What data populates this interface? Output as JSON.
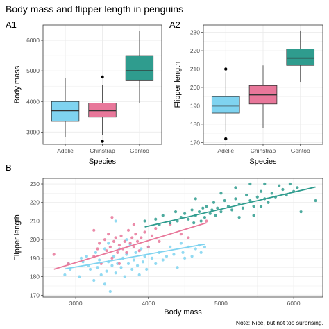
{
  "figure": {
    "title": "Body mass and flipper length in penguins",
    "caption": "Note: Nice, but not too surprising."
  },
  "colors": {
    "Adelie": "#7fd3f0",
    "Chinstrap": "#e8779a",
    "Gentoo": "#2f9c8e",
    "grid": "#ebebeb",
    "panel_border": "#333333"
  },
  "chart_data": [
    {
      "type": "box",
      "tag": "A1",
      "xlabel": "Species",
      "ylabel": "Body mass",
      "categories": [
        "Adelie",
        "Chinstrap",
        "Gentoo"
      ],
      "ylim": [
        2600,
        6500
      ],
      "yticks": [
        3000,
        4000,
        5000,
        6000
      ],
      "boxes": [
        {
          "name": "Adelie",
          "min": 2850,
          "q1": 3350,
          "median": 3700,
          "q3": 4000,
          "max": 4775,
          "outliers": []
        },
        {
          "name": "Chinstrap",
          "min": 2900,
          "q1": 3490,
          "median": 3700,
          "q3": 3950,
          "max": 4550,
          "outliers": [
            2700,
            4800
          ]
        },
        {
          "name": "Gentoo",
          "min": 3950,
          "q1": 4700,
          "median": 5000,
          "q3": 5500,
          "max": 6300,
          "outliers": []
        }
      ]
    },
    {
      "type": "box",
      "tag": "A2",
      "xlabel": "Species",
      "ylabel": "Flipper length",
      "categories": [
        "Adelie",
        "Chinstrap",
        "Gentoo"
      ],
      "ylim": [
        169,
        234
      ],
      "yticks": [
        170,
        180,
        190,
        200,
        210,
        220,
        230
      ],
      "boxes": [
        {
          "name": "Adelie",
          "min": 176,
          "q1": 186,
          "median": 190,
          "q3": 195,
          "max": 208,
          "outliers": [
            172,
            210
          ]
        },
        {
          "name": "Chinstrap",
          "min": 178,
          "q1": 191,
          "median": 196,
          "q3": 201,
          "max": 212,
          "outliers": []
        },
        {
          "name": "Gentoo",
          "min": 203,
          "q1": 212,
          "median": 216,
          "q3": 221,
          "max": 231,
          "outliers": []
        }
      ]
    },
    {
      "type": "scatter",
      "tag": "B",
      "xlabel": "Body mass",
      "ylabel": "Flipper length",
      "xlim": [
        2550,
        6400
      ],
      "ylim": [
        169,
        233
      ],
      "xticks": [
        3000,
        4000,
        5000,
        6000
      ],
      "yticks": [
        170,
        180,
        190,
        200,
        210,
        220,
        230
      ],
      "series": [
        {
          "name": "Adelie",
          "fit": [
            [
              2850,
              184.2
            ],
            [
              4775,
              197.5
            ]
          ],
          "points": [
            [
              2850,
              181
            ],
            [
              2900,
              187
            ],
            [
              2925,
              184
            ],
            [
              3050,
              180
            ],
            [
              3075,
              190
            ],
            [
              3100,
              188
            ],
            [
              3150,
              191
            ],
            [
              3175,
              186
            ],
            [
              3200,
              184
            ],
            [
              3250,
              178
            ],
            [
              3275,
              193
            ],
            [
              3300,
              185
            ],
            [
              3325,
              189
            ],
            [
              3350,
              181
            ],
            [
              3400,
              195
            ],
            [
              3425,
              183
            ],
            [
              3450,
              188
            ],
            [
              3475,
              172
            ],
            [
              3500,
              186
            ],
            [
              3525,
              191
            ],
            [
              3550,
              182
            ],
            [
              3575,
              187
            ],
            [
              3600,
              195
            ],
            [
              3625,
              185
            ],
            [
              3650,
              190
            ],
            [
              3675,
              180
            ],
            [
              3700,
              192
            ],
            [
              3725,
              187
            ],
            [
              3750,
              197
            ],
            [
              3775,
              184
            ],
            [
              3800,
              189
            ],
            [
              3825,
              193
            ],
            [
              3850,
              186
            ],
            [
              3875,
              181
            ],
            [
              3900,
              195
            ],
            [
              3925,
              188
            ],
            [
              3950,
              191
            ],
            [
              3975,
              184
            ],
            [
              4000,
              196
            ],
            [
              4050,
              190
            ],
            [
              4100,
              187
            ],
            [
              4150,
              193
            ],
            [
              4200,
              189
            ],
            [
              4250,
              191
            ],
            [
              4300,
              196
            ],
            [
              4350,
              192
            ],
            [
              4400,
              185
            ],
            [
              4450,
              198
            ],
            [
              4475,
              193
            ],
            [
              4500,
              190
            ],
            [
              4550,
              196
            ],
            [
              4600,
              191
            ],
            [
              4650,
              195
            ],
            [
              4700,
              197
            ],
            [
              4725,
              193
            ],
            [
              4775,
              196
            ],
            [
              3400,
              176
            ],
            [
              3550,
              210
            ],
            [
              3700,
              200
            ],
            [
              3450,
              198
            ]
          ]
        },
        {
          "name": "Chinstrap",
          "fit": [
            [
              2700,
              184.0
            ],
            [
              4800,
              209.0
            ]
          ],
          "points": [
            [
              2700,
              192
            ],
            [
              2900,
              187
            ],
            [
              3250,
              191
            ],
            [
              3300,
              195
            ],
            [
              3325,
              198
            ],
            [
              3350,
              187
            ],
            [
              3400,
              200
            ],
            [
              3425,
              194
            ],
            [
              3450,
              203
            ],
            [
              3475,
              196
            ],
            [
              3500,
              190
            ],
            [
              3525,
              199
            ],
            [
              3550,
              201
            ],
            [
              3575,
              193
            ],
            [
              3600,
              197
            ],
            [
              3625,
              202
            ],
            [
              3650,
              195
            ],
            [
              3675,
              199
            ],
            [
              3700,
              193
            ],
            [
              3725,
              205
            ],
            [
              3750,
              198
            ],
            [
              3775,
              201
            ],
            [
              3800,
              196
            ],
            [
              3825,
              203
            ],
            [
              3850,
              199
            ],
            [
              3875,
              194
            ],
            [
              3900,
              201
            ],
            [
              3950,
              204
            ],
            [
              4000,
              196
            ],
            [
              4050,
              202
            ],
            [
              4100,
              206
            ],
            [
              4150,
              199
            ],
            [
              4300,
              208
            ],
            [
              4450,
              203
            ],
            [
              4550,
              201
            ],
            [
              4800,
              210
            ],
            [
              3600,
              187
            ],
            [
              3800,
              208
            ],
            [
              3250,
              205
            ],
            [
              3500,
              212
            ]
          ]
        },
        {
          "name": "Gentoo",
          "fit": [
            [
              3950,
              206.8
            ],
            [
              6300,
              228.3
            ]
          ],
          "points": [
            [
              3950,
              210
            ],
            [
              4100,
              211
            ],
            [
              4150,
              208
            ],
            [
              4200,
              213
            ],
            [
              4300,
              209
            ],
            [
              4375,
              215
            ],
            [
              4400,
              210
            ],
            [
              4450,
              212
            ],
            [
              4500,
              214
            ],
            [
              4550,
              211
            ],
            [
              4600,
              216
            ],
            [
              4625,
              209
            ],
            [
              4650,
              213
            ],
            [
              4700,
              215
            ],
            [
              4725,
              210
            ],
            [
              4750,
              217
            ],
            [
              4775,
              212
            ],
            [
              4800,
              218
            ],
            [
              4850,
              214
            ],
            [
              4875,
              216
            ],
            [
              4900,
              220
            ],
            [
              4925,
              213
            ],
            [
              4950,
              217
            ],
            [
              5000,
              215
            ],
            [
              5050,
              221
            ],
            [
              5100,
              218
            ],
            [
              5150,
              216
            ],
            [
              5200,
              222
            ],
            [
              5250,
              219
            ],
            [
              5300,
              217
            ],
            [
              5350,
              224
            ],
            [
              5400,
              221
            ],
            [
              5450,
              218
            ],
            [
              5500,
              223
            ],
            [
              5550,
              226
            ],
            [
              5600,
              222
            ],
            [
              5650,
              220
            ],
            [
              5700,
              225
            ],
            [
              5750,
              223
            ],
            [
              5800,
              229
            ],
            [
              5850,
              227
            ],
            [
              5900,
              224
            ],
            [
              5950,
              230
            ],
            [
              6000,
              226
            ],
            [
              6050,
              228
            ],
            [
              6300,
              221
            ],
            [
              5000,
              225
            ],
            [
              5200,
              228
            ],
            [
              5400,
              230
            ],
            [
              5600,
              230
            ],
            [
              5250,
              212
            ],
            [
              5450,
              213
            ],
            [
              4650,
              222
            ],
            [
              5550,
              218
            ],
            [
              6100,
              215
            ]
          ]
        }
      ]
    }
  ]
}
